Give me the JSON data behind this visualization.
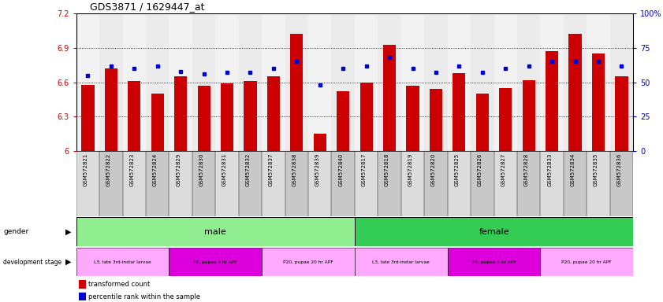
{
  "title": "GDS3871 / 1629447_at",
  "samples": [
    "GSM572821",
    "GSM572822",
    "GSM572823",
    "GSM572824",
    "GSM572829",
    "GSM572830",
    "GSM572831",
    "GSM572832",
    "GSM572837",
    "GSM572838",
    "GSM572839",
    "GSM572840",
    "GSM572817",
    "GSM572818",
    "GSM572819",
    "GSM572820",
    "GSM572825",
    "GSM572826",
    "GSM572827",
    "GSM572828",
    "GSM572833",
    "GSM572834",
    "GSM572835",
    "GSM572836"
  ],
  "red_values": [
    6.58,
    6.72,
    6.61,
    6.5,
    6.65,
    6.57,
    6.59,
    6.61,
    6.65,
    7.02,
    6.15,
    6.52,
    6.6,
    6.93,
    6.57,
    6.54,
    6.68,
    6.5,
    6.55,
    6.62,
    6.87,
    7.02,
    6.85,
    6.65
  ],
  "blue_values": [
    55,
    62,
    60,
    62,
    58,
    56,
    57,
    57,
    60,
    65,
    48,
    60,
    62,
    68,
    60,
    57,
    62,
    57,
    60,
    62,
    65,
    65,
    65,
    62
  ],
  "ymin": 6.0,
  "ymax": 7.2,
  "yticks": [
    6.0,
    6.3,
    6.6,
    6.9,
    7.2
  ],
  "ytick_labels": [
    "6",
    "6.3",
    "6.6",
    "6.9",
    "7.2"
  ],
  "right_yticks": [
    0,
    25,
    50,
    75,
    100
  ],
  "right_ytick_labels": [
    "0",
    "25",
    "50",
    "75",
    "100%"
  ],
  "bar_color": "#CC0000",
  "marker_color": "#0000CC",
  "left_label_color": "#CC0000",
  "right_label_color": "#0000CC",
  "gender_color_male": "#90EE90",
  "gender_color_female": "#33CC55",
  "stage_colors": [
    "#FFAAFF",
    "#DD00DD",
    "#CC66CC"
  ],
  "stage_male": [
    "L3, late 3rd-instar larvae",
    "P6, pupae 6 hr APF",
    "P20, pupae 20 hr APF"
  ],
  "stage_female": [
    "L3, late 3rd-instar larvae",
    "P6, pupae 6 hr APF",
    "P20, pupae 20 hr APF"
  ],
  "stage_counts_male": [
    4,
    4,
    4
  ],
  "stage_counts_female": [
    4,
    4,
    4
  ]
}
